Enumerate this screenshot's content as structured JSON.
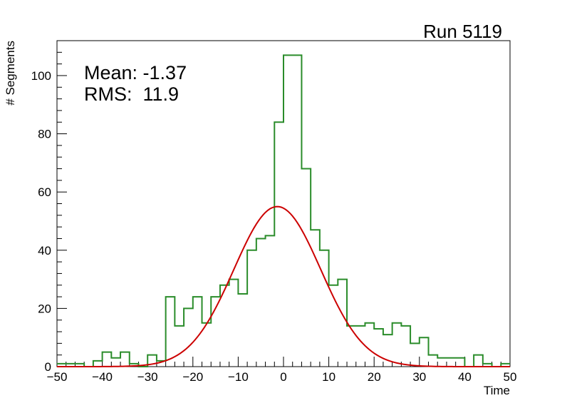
{
  "chart_data": {
    "type": "histogram",
    "title": "Run 5119",
    "xlabel": "Time",
    "ylabel": "# Segments",
    "xlim": [
      -50,
      50
    ],
    "ylim": [
      0,
      112
    ],
    "x_ticks": [
      -50,
      -40,
      -30,
      -20,
      -10,
      0,
      10,
      20,
      30,
      40,
      50
    ],
    "x_tick_labels": [
      "−50",
      "−40",
      "−30",
      "−20",
      "−10",
      "0",
      "10",
      "20",
      "30",
      "40",
      "50"
    ],
    "y_ticks": [
      0,
      20,
      40,
      60,
      80,
      100
    ],
    "y_tick_labels": [
      "0",
      "20",
      "40",
      "60",
      "80",
      "100"
    ],
    "stats": {
      "mean_label": "Mean: -1.37",
      "rms_label": "RMS:  11.9"
    },
    "histogram": {
      "color": "#2a8c2a",
      "bin_width": 2,
      "bin_start": -50,
      "counts": [
        1,
        1,
        1,
        0,
        2,
        5,
        3,
        5,
        1,
        0,
        4,
        2,
        24,
        14,
        20,
        24,
        15,
        24,
        28,
        30,
        25,
        40,
        44,
        45,
        84,
        107,
        107,
        68,
        47,
        40,
        28,
        30,
        14,
        14,
        15,
        13,
        11,
        15,
        14,
        8,
        10,
        4,
        3,
        3,
        3,
        0,
        4,
        1,
        0,
        1
      ]
    },
    "fit": {
      "type": "gaussian",
      "color": "#cc0000",
      "amplitude": 55,
      "mean": -1.37,
      "sigma": 9.6
    },
    "grid": false,
    "legend": "none"
  }
}
